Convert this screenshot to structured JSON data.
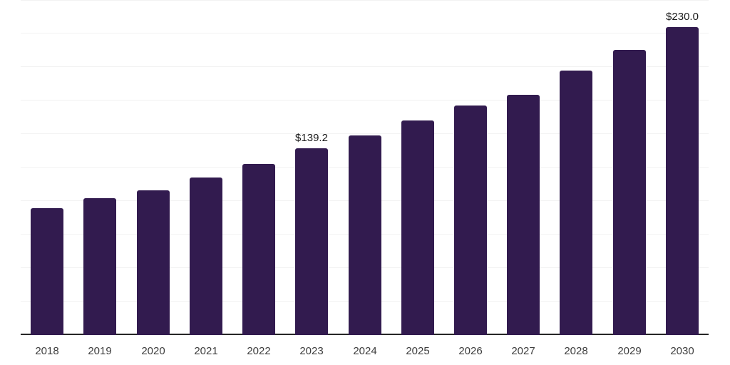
{
  "chart": {
    "background_color": "#ffffff",
    "bar_color": "#321b4f",
    "gridline_color": "#f2f2f2",
    "axis_line_color": "#262626",
    "tick_label_color": "#3d3d3d",
    "data_label_color": "#1a1a1a"
  },
  "chart_data": {
    "type": "bar",
    "title": "",
    "xlabel": "",
    "ylabel": "",
    "legend": "none",
    "grid": "horizontal",
    "categories": [
      "2018",
      "2019",
      "2020",
      "2021",
      "2022",
      "2023",
      "2024",
      "2025",
      "2026",
      "2027",
      "2028",
      "2029",
      "2030"
    ],
    "values": [
      94.5,
      101.9,
      107.8,
      117.6,
      127.7,
      139.2,
      149.1,
      160.1,
      171.1,
      179.3,
      197.5,
      212.8,
      230.0
    ],
    "data_labels": [
      "",
      "",
      "",
      "",
      "",
      "$139.2",
      "",
      "",
      "",
      "",
      "",
      "",
      "$230.0"
    ],
    "ylim": [
      0,
      250
    ],
    "gridline_step": 25,
    "y_tick_labels_visible": false
  }
}
